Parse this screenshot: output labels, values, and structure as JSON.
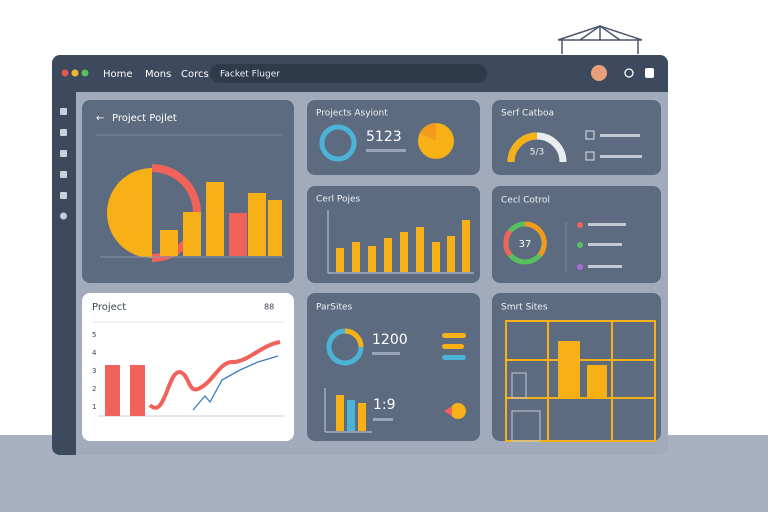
{
  "nav": {
    "items": [
      "Home",
      "Mons",
      "Corcs"
    ],
    "search": "Facket Fluger"
  },
  "panels": [
    {
      "title": "Project Pojlet"
    },
    {
      "title": "Projects Asyiont",
      "value": "5123"
    },
    {
      "title": "Serf Catboa",
      "value": "5/3"
    },
    {
      "title": "Cerl Pojes"
    },
    {
      "title": "Cecl Cotrol",
      "value": "37"
    },
    {
      "title": "Project",
      "value": "88",
      "axis": [
        "5",
        "4",
        "3",
        "2",
        "1"
      ]
    },
    {
      "title": "ParSites",
      "value": "1200",
      "value2": "1:9"
    },
    {
      "title": "Smrt Sites"
    }
  ]
}
